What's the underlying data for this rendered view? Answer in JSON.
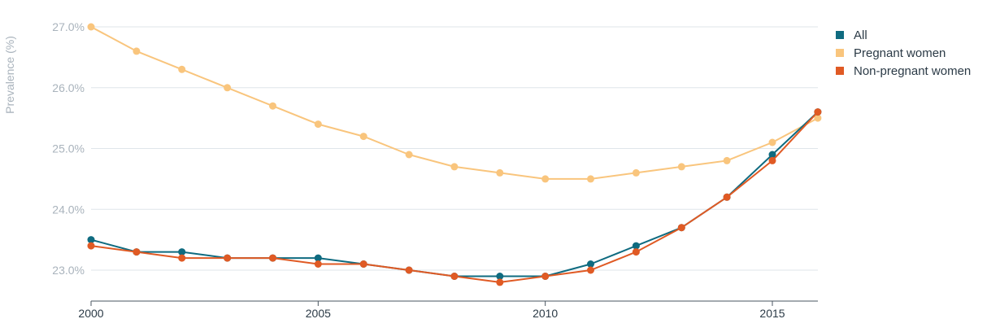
{
  "chart_data": {
    "type": "line",
    "ylabel": "Prevalence (%)",
    "x": [
      2000,
      2001,
      2002,
      2003,
      2004,
      2005,
      2006,
      2007,
      2008,
      2009,
      2010,
      2011,
      2012,
      2013,
      2014,
      2015,
      2016
    ],
    "xticks": [
      {
        "value": 2000,
        "label": "2000"
      },
      {
        "value": 2005,
        "label": "2005"
      },
      {
        "value": 2010,
        "label": "2010"
      },
      {
        "value": 2015,
        "label": "2015"
      }
    ],
    "yticks": [
      {
        "value": 23.0,
        "label": "23.0%"
      },
      {
        "value": 24.0,
        "label": "24.0%"
      },
      {
        "value": 25.0,
        "label": "25.0%"
      },
      {
        "value": 26.0,
        "label": "26.0%"
      },
      {
        "value": 27.0,
        "label": "27.0%"
      }
    ],
    "xlim": [
      2000,
      2016
    ],
    "ylim": [
      22.5,
      27.0
    ],
    "grid": "horizontal",
    "legend_position": "top-right",
    "series": [
      {
        "name": "All",
        "color": "#0f6b80",
        "values": [
          23.5,
          23.3,
          23.3,
          23.2,
          23.2,
          23.2,
          23.1,
          23.0,
          22.9,
          22.9,
          22.9,
          23.1,
          23.4,
          23.7,
          24.2,
          24.9,
          25.6
        ]
      },
      {
        "name": "Pregnant women",
        "color": "#f9c57d",
        "values": [
          27.0,
          26.6,
          26.3,
          26.0,
          25.7,
          25.4,
          25.2,
          24.9,
          24.7,
          24.6,
          24.5,
          24.5,
          24.6,
          24.7,
          24.8,
          25.1,
          25.5
        ]
      },
      {
        "name": "Non-pregnant women",
        "color": "#e05a24",
        "values": [
          23.4,
          23.3,
          23.2,
          23.2,
          23.2,
          23.1,
          23.1,
          23.0,
          22.9,
          22.8,
          22.9,
          23.0,
          23.3,
          23.7,
          24.2,
          24.8,
          25.6
        ]
      }
    ]
  }
}
